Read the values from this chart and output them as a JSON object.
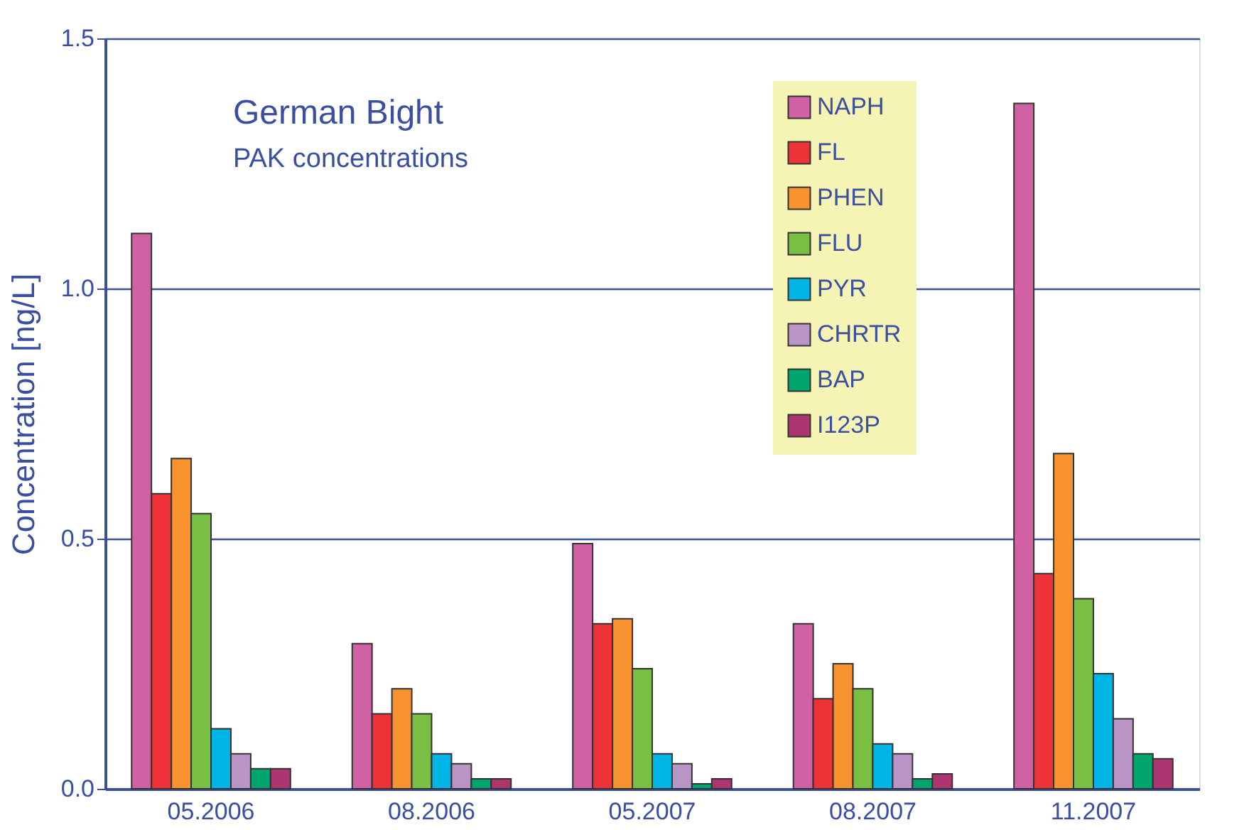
{
  "chart_data": {
    "type": "bar",
    "title": "German Bight",
    "subtitle": "PAK concentrations",
    "ylabel": "Concentration [ng/L]",
    "categories": [
      "05.2006",
      "08.2006",
      "05.2007",
      "08.2007",
      "11.2007"
    ],
    "series": [
      {
        "name": "NAPH",
        "color": "#d062a4",
        "values": [
          1.11,
          0.29,
          0.49,
          0.33,
          1.37
        ]
      },
      {
        "name": "FL",
        "color": "#ee3338",
        "values": [
          0.59,
          0.15,
          0.33,
          0.18,
          0.43
        ]
      },
      {
        "name": "PHEN",
        "color": "#f7922e",
        "values": [
          0.66,
          0.2,
          0.34,
          0.25,
          0.67
        ]
      },
      {
        "name": "FLU",
        "color": "#79bf43",
        "values": [
          0.55,
          0.15,
          0.24,
          0.2,
          0.38
        ]
      },
      {
        "name": "PYR",
        "color": "#00b5e5",
        "values": [
          0.12,
          0.07,
          0.07,
          0.09,
          0.23
        ]
      },
      {
        "name": "CHRTR",
        "color": "#b995c5",
        "values": [
          0.07,
          0.05,
          0.05,
          0.07,
          0.14
        ]
      },
      {
        "name": "BAP",
        "color": "#00a56e",
        "values": [
          0.04,
          0.02,
          0.01,
          0.02,
          0.07
        ]
      },
      {
        "name": "I123P",
        "color": "#ae3670",
        "values": [
          0.04,
          0.02,
          0.02,
          0.03,
          0.06
        ]
      }
    ],
    "ylim": [
      0,
      1.5
    ],
    "yticks": [
      {
        "value": 0,
        "label": "0.0"
      },
      0.5,
      {
        "value": 1,
        "label": "1.0"
      },
      1.5
    ],
    "grid": "y",
    "legend": "top right"
  }
}
